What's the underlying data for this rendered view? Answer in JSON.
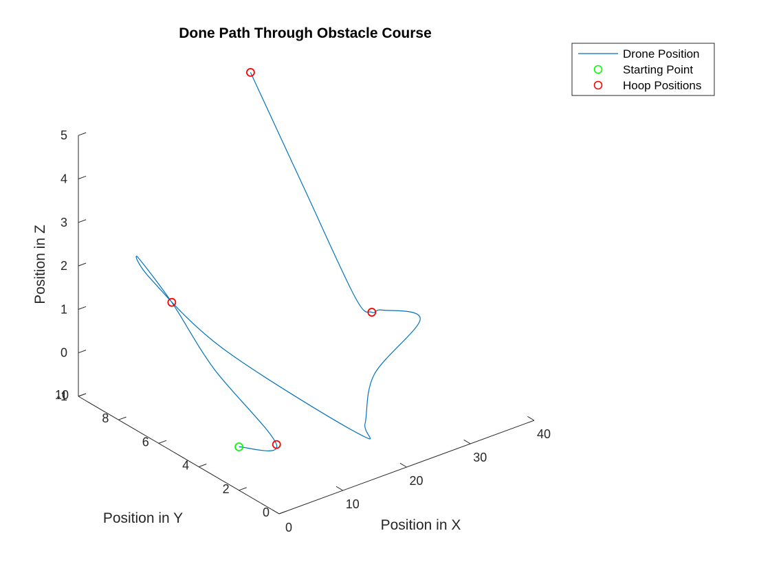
{
  "chart_data": {
    "type": "line3d",
    "title": "Done Path Through Obstacle Course",
    "xlabel": "Position in X",
    "ylabel": "Position in Y",
    "zlabel": "Position in Z",
    "xlim": [
      0,
      40
    ],
    "ylim": [
      0,
      10
    ],
    "zlim": [
      -1,
      5
    ],
    "xticks": [
      "0",
      "10",
      "20",
      "30",
      "40"
    ],
    "yticks": [
      "0",
      "2",
      "4",
      "6",
      "8",
      "10"
    ],
    "zticks": [
      "-1",
      "0",
      "1",
      "2",
      "3",
      "4",
      "5"
    ],
    "grid": false,
    "legend_position": "top-right",
    "legend": [
      "Drone Position",
      "Starting Point",
      "Hoop Positions"
    ],
    "colors": {
      "path": "#0072bd",
      "start": "#00ff00",
      "hoop": "#ff0000"
    },
    "starting_point": {
      "x": 0,
      "y": 2,
      "z": 0
    },
    "hoops": [
      {
        "x": 4,
        "y": 1.4,
        "z": 0
      },
      {
        "x": 3,
        "y": 6.3,
        "z": 2
      },
      {
        "x": 35,
        "y": 6.5,
        "z": 0
      },
      {
        "x": 27,
        "y": 10,
        "z": 5
      }
    ],
    "path": [
      {
        "x": 0,
        "y": 2,
        "z": 0
      },
      {
        "x": 4,
        "y": 1.4,
        "z": 0
      },
      {
        "x": 3.3,
        "y": 4.3,
        "z": 1
      },
      {
        "x": 3,
        "y": 6.3,
        "z": 2
      },
      {
        "x": 3.6,
        "y": 8.2,
        "z": 2.5
      },
      {
        "x": 4.8,
        "y": 7.9,
        "z": 2
      },
      {
        "x": 7.5,
        "y": 5.2,
        "z": 1
      },
      {
        "x": 13.7,
        "y": 0.4,
        "z": 0
      },
      {
        "x": 16,
        "y": 0.8,
        "z": 0
      },
      {
        "x": 25,
        "y": 3.2,
        "z": 0
      },
      {
        "x": 38.5,
        "y": 5.2,
        "z": 0
      },
      {
        "x": 36,
        "y": 6.3,
        "z": 0.05
      },
      {
        "x": 35,
        "y": 6.5,
        "z": 0
      },
      {
        "x": 34,
        "y": 7,
        "z": 0.25
      },
      {
        "x": 30.8,
        "y": 8.5,
        "z": 2.5
      },
      {
        "x": 27,
        "y": 10,
        "z": 5
      }
    ]
  }
}
